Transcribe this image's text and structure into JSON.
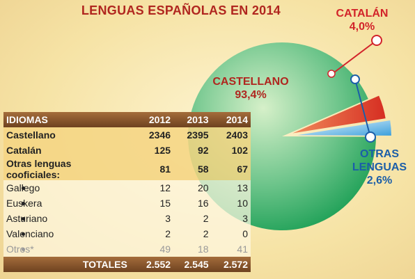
{
  "title": "LENGUAS ESPAÑOLAS EN 2014",
  "chart_data": {
    "type": "pie",
    "title": "LENGUAS ESPAÑOLAS EN 2014",
    "slices": [
      {
        "name": "CASTELLANO",
        "value": 93.4,
        "label": "93,4%",
        "color": "#3aa564"
      },
      {
        "name": "CATALÁN",
        "value": 4.0,
        "label": "4,0%",
        "color": "#e8432a"
      },
      {
        "name": "OTRAS LENGUAS",
        "value": 2.6,
        "label": "2,6%",
        "color": "#7ec8ee"
      }
    ]
  },
  "labels": {
    "castellano": {
      "name": "CASTELLANO",
      "pct": "93,4%"
    },
    "catalan": {
      "name": "CATALÁN",
      "pct": "4,0%"
    },
    "otras": {
      "line1": "OTRAS",
      "line2": "LENGUAS",
      "pct": "2,6%"
    }
  },
  "table": {
    "headers": [
      "IDIOMAS",
      "2012",
      "2013",
      "2014"
    ],
    "rows": [
      {
        "label": "Castellano",
        "values": [
          "2346",
          "2395",
          "2403"
        ]
      },
      {
        "label": "Catalán",
        "values": [
          "125",
          "92",
          "102"
        ]
      },
      {
        "label": "Otras lenguas cooficiales:",
        "values": [
          "81",
          "58",
          "67"
        ]
      },
      {
        "label": "Gallego",
        "values": [
          "12",
          "20",
          "13"
        ]
      },
      {
        "label": "Euskera",
        "values": [
          "15",
          "16",
          "10"
        ]
      },
      {
        "label": "Asturiano",
        "values": [
          "3",
          "2",
          "3"
        ]
      },
      {
        "label": "Valenciano",
        "values": [
          "2",
          "2",
          "0"
        ]
      },
      {
        "label": "Otros*",
        "values": [
          "49",
          "18",
          "41"
        ]
      }
    ],
    "totals": {
      "label": "TOTALES",
      "values": [
        "2.552",
        "2.545",
        "2.572"
      ]
    }
  },
  "colors": {
    "title": "#b0261f",
    "castellano": "#3aa564",
    "catalan": "#e8432a",
    "otras": "#7ec8ee",
    "header": "#8a5a2e"
  }
}
